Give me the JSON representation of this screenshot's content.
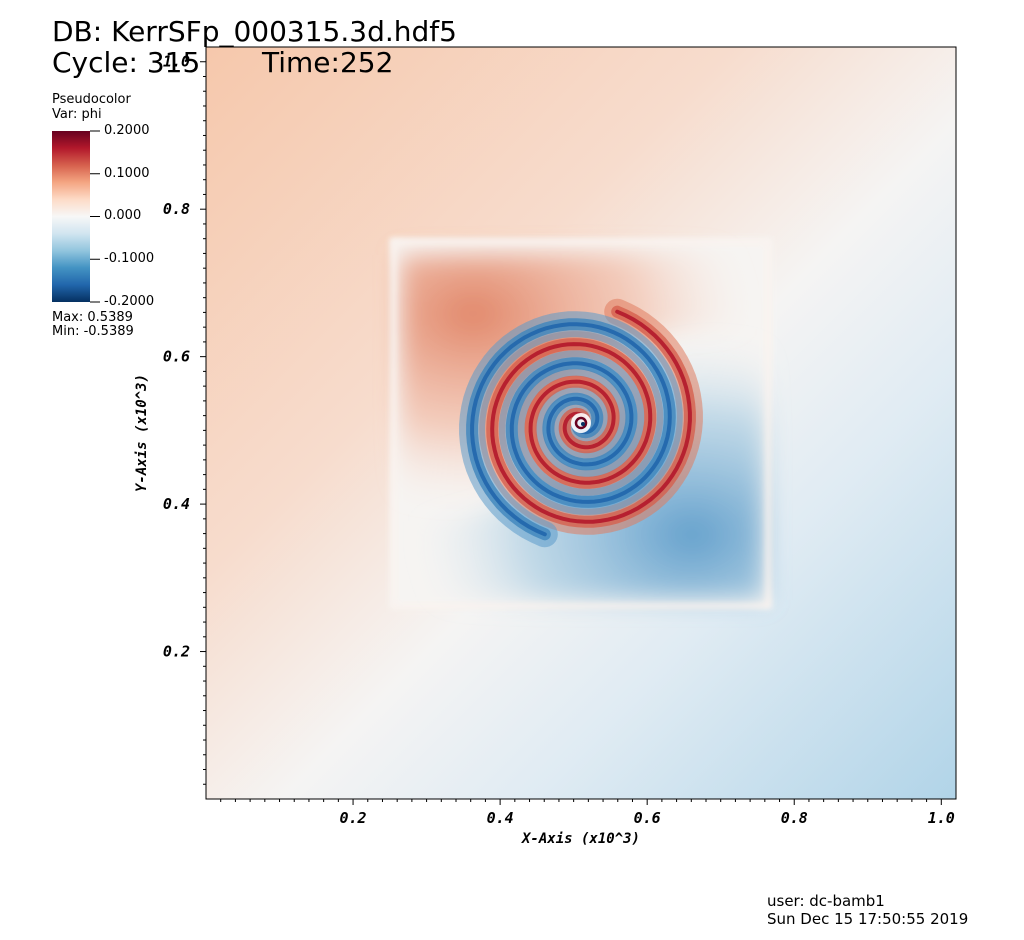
{
  "header": {
    "db_title": "DB: KerrSFp_000315.3d.hdf5",
    "cycle": "Cycle: 315",
    "time": "Time:252"
  },
  "legend": {
    "plot_type": "Pseudocolor",
    "variable": "Var: phi",
    "colorbar_labels": [
      "0.2000",
      "0.1000",
      "0.000",
      "-0.1000",
      "-0.2000"
    ],
    "max": "Max:  0.5389",
    "min": "Min: -0.5389",
    "colors": [
      "#67001f",
      "#b2182b",
      "#d6604d",
      "#f4a582",
      "#fddbc7",
      "#f7f7f7",
      "#d1e5f0",
      "#92c5de",
      "#4393c3",
      "#2166ac",
      "#053061"
    ]
  },
  "footer": {
    "user": "user: dc-bamb1",
    "date": "Sun Dec 15 17:50:55 2019"
  },
  "chart_data": {
    "type": "heatmap",
    "title": "",
    "variable": "phi",
    "colormap": "RdBu (diverging)",
    "xlabel": "X-Axis (x10^3)",
    "ylabel": "Y-Axis (x10^3)",
    "xlim": [
      0.0,
      1.02
    ],
    "ylim": [
      0.0,
      1.02
    ],
    "x_ticks": [
      0.2,
      0.4,
      0.6,
      0.8,
      1.0
    ],
    "x_tick_labels": [
      "0.2",
      "0.4",
      "0.6",
      "0.8",
      "1.0"
    ],
    "y_ticks": [
      0.2,
      0.4,
      0.6,
      0.8,
      1.0
    ],
    "y_tick_labels": [
      "0.2",
      "0.4",
      "0.6",
      "0.8",
      "1.0"
    ],
    "color_range": [
      -0.2,
      0.2
    ],
    "data_max": 0.5389,
    "data_min": -0.5389,
    "features": {
      "spiral_center": [
        0.51,
        0.51
      ],
      "refined_box_x": [
        0.26,
        0.77
      ],
      "refined_box_y": [
        0.26,
        0.77
      ]
    },
    "grid": false
  }
}
